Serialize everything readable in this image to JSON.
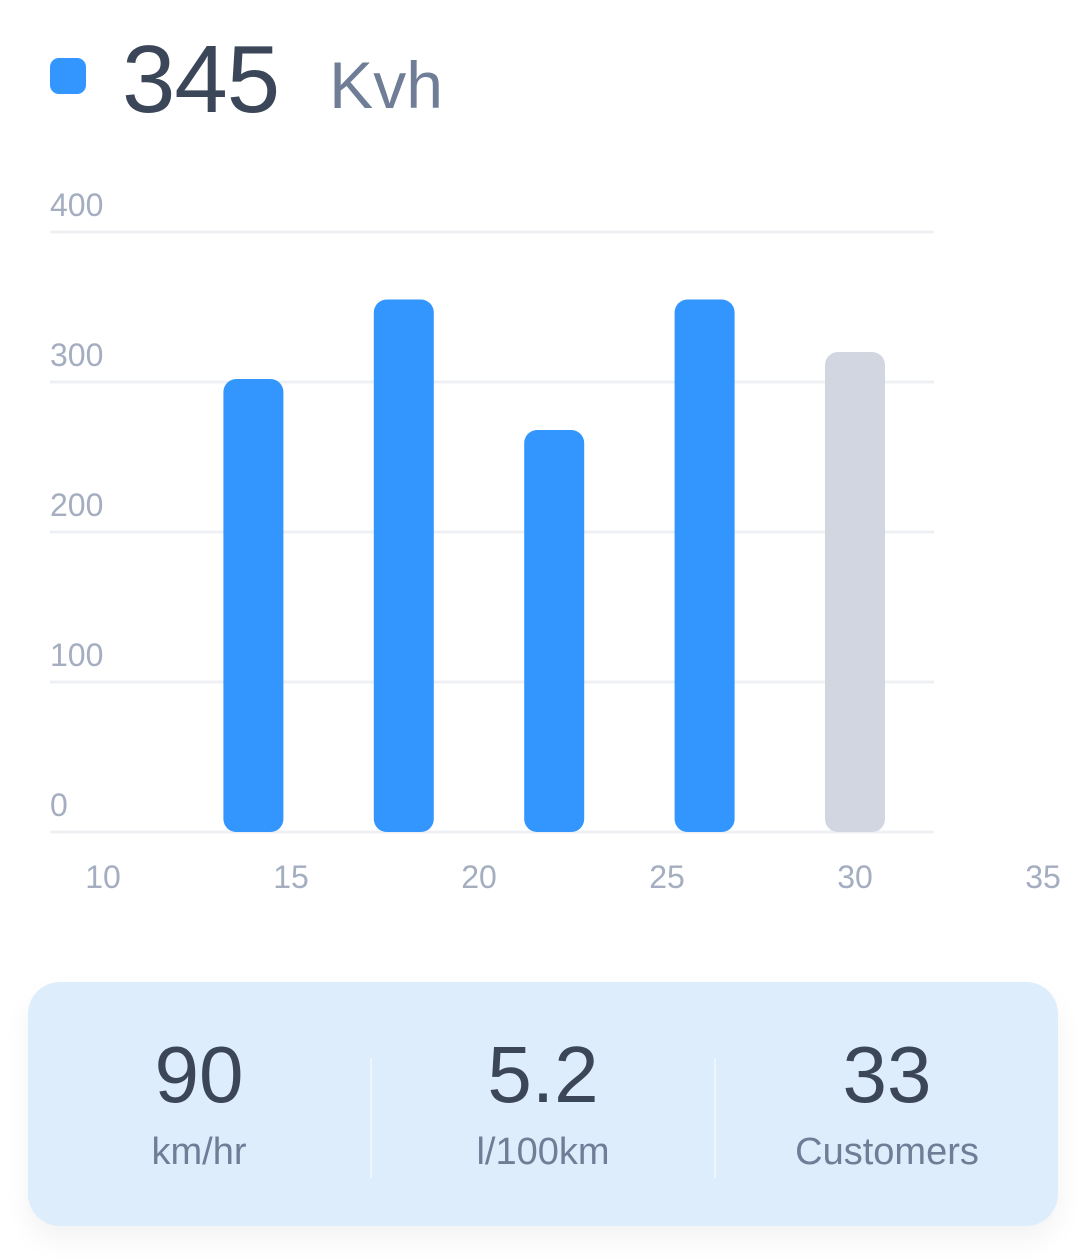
{
  "header": {
    "value": "345",
    "unit": "Kvh",
    "dot_color": "#3396fe"
  },
  "chart_data": {
    "type": "bar",
    "x": [
      14,
      18,
      22,
      26,
      30
    ],
    "values": [
      302,
      355,
      268,
      355,
      320
    ],
    "bar_colors": [
      "#3396fe",
      "#3396fe",
      "#3396fe",
      "#3396fe",
      "#d2d6e0"
    ],
    "x_ticks": [
      "10",
      "15",
      "20",
      "25",
      "30",
      "35"
    ],
    "y_ticks": [
      "0",
      "100",
      "200",
      "300",
      "400"
    ],
    "xlim": [
      10,
      35
    ],
    "ylim": [
      0,
      400
    ],
    "grid": true
  },
  "stats": [
    {
      "value": "90",
      "label": "km/hr"
    },
    {
      "value": "5.2",
      "label": "l/100km"
    },
    {
      "value": "33",
      "label": "Customers"
    }
  ]
}
